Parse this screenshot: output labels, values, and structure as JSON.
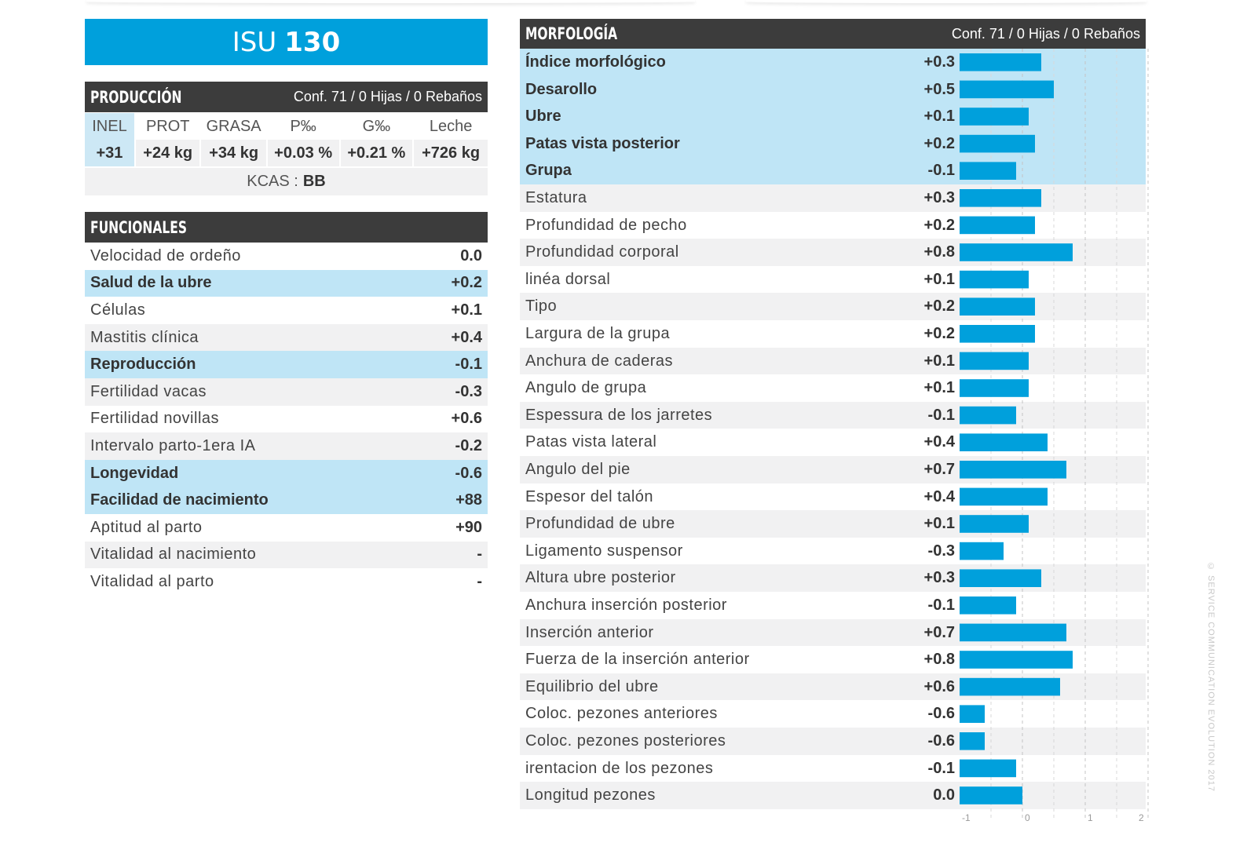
{
  "isu": {
    "label": "ISU",
    "value": "130"
  },
  "produccion": {
    "title": "PRODUCCIÓN",
    "conf": "Conf. 71 / 0 Hijas / 0 Rebaños",
    "headers": [
      "INEL",
      "PROT",
      "GRASA",
      "P‰",
      "G‰",
      "Leche"
    ],
    "values": [
      "+31",
      "+24 kg",
      "+34 kg",
      "+0.03 %",
      "+0.21 %",
      "+726 kg"
    ],
    "kcas_label": "KCAS :",
    "kcas_value": "BB"
  },
  "funcionales": {
    "title": "FUNCIONALES",
    "rows": [
      {
        "label": "Velocidad de ordeño",
        "value": "0.0",
        "style": "plain"
      },
      {
        "label": "Salud de la ubre",
        "value": "+0.2",
        "style": "hl"
      },
      {
        "label": "Células",
        "value": "+0.1",
        "style": "plain"
      },
      {
        "label": "Mastitis clínica",
        "value": "+0.4",
        "style": "alt"
      },
      {
        "label": "Reproducción",
        "value": "-0.1",
        "style": "hl"
      },
      {
        "label": "Fertilidad vacas",
        "value": "-0.3",
        "style": "alt"
      },
      {
        "label": "Fertilidad novillas",
        "value": "+0.6",
        "style": "plain"
      },
      {
        "label": "Intervalo parto-1era IA",
        "value": "-0.2",
        "style": "alt"
      },
      {
        "label": "Longevidad",
        "value": "-0.6",
        "style": "hl"
      },
      {
        "label": "Facilidad de nacimiento",
        "value": "+88",
        "style": "hl"
      },
      {
        "label": "Aptitud al parto",
        "value": "+90",
        "style": "plain"
      },
      {
        "label": "Vitalidad al nacimiento",
        "value": "-",
        "style": "alt"
      },
      {
        "label": "Vitalidad al parto",
        "value": "-",
        "style": "plain"
      }
    ]
  },
  "morfologia": {
    "title": "MORFOLOGÍA",
    "conf": "Conf. 71 / 0 Hijas / 0 Rebaños",
    "row_styles": [
      "hl",
      "hl",
      "hl",
      "hl",
      "hl",
      "alt",
      "plain",
      "alt",
      "plain",
      "alt",
      "plain",
      "alt",
      "plain",
      "alt",
      "plain",
      "alt",
      "plain",
      "alt",
      "plain",
      "alt",
      "plain",
      "alt",
      "plain",
      "alt",
      "plain",
      "alt",
      "plain",
      "alt"
    ],
    "value_labels": [
      "+0.3",
      "+0.5",
      "+0.1",
      "+0.2",
      "-0.1",
      "+0.3",
      "+0.2",
      "+0.8",
      "+0.1",
      "+0.2",
      "+0.2",
      "+0.1",
      "+0.1",
      "-0.1",
      "+0.4",
      "+0.7",
      "+0.4",
      "+0.1",
      "-0.3",
      "+0.3",
      "-0.1",
      "+0.7",
      "+0.8",
      "+0.6",
      "-0.6",
      "-0.6",
      "-0.1",
      "0.0"
    ]
  },
  "chart_data": {
    "type": "bar",
    "orientation": "horizontal",
    "categories": [
      "Índice morfológico",
      "Desarollo",
      "Ubre",
      "Patas vista posterior",
      "Grupa",
      "Estatura",
      "Profundidad de pecho",
      "Profundidad corporal",
      "linéa dorsal",
      "Tipo",
      "Largura de la grupa",
      "Anchura de caderas",
      "Angulo de grupa",
      "Espessura de los jarretes",
      "Patas vista lateral",
      "Angulo del pie",
      "Espesor del talón",
      "Profundidad de ubre",
      "Ligamento suspensor",
      "Altura ubre posterior",
      "Anchura inserción posterior",
      "Inserción anterior",
      "Fuerza de la inserción anterior",
      "Equilibrio del ubre",
      "Coloc. pezones anteriores",
      "Coloc. pezones posteriores",
      "irentacion de los pezones",
      "Longitud pezones"
    ],
    "values": [
      0.3,
      0.5,
      0.1,
      0.2,
      -0.1,
      0.3,
      0.2,
      0.8,
      0.1,
      0.2,
      0.2,
      0.1,
      0.1,
      -0.1,
      0.4,
      0.7,
      0.4,
      0.1,
      -0.3,
      0.3,
      -0.1,
      0.7,
      0.8,
      0.6,
      -0.6,
      -0.6,
      -0.1,
      0.0
    ],
    "xlim": [
      -1,
      2
    ],
    "xticks": [
      "-1",
      "0",
      "1",
      "2"
    ],
    "bar_color": "#00a0dc",
    "grid": true
  },
  "credit": "© SERVICE COMMUNICATION EVOLUTION 2017",
  "colors": {
    "accent": "#00a0dc",
    "header": "#3c3c3c",
    "highlight": "#bfe5f6",
    "alt": "#f1f1f2"
  }
}
